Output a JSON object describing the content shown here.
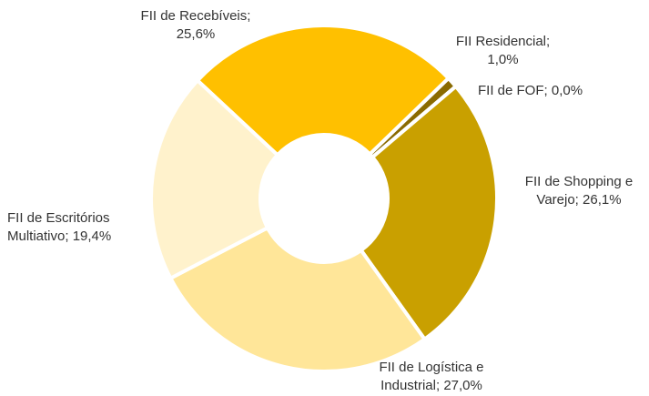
{
  "chart_data": {
    "type": "pie",
    "categories": [
      "FII de Recebíveis;",
      "FII Residencial;",
      "FII de FOF;",
      "FII de Shopping e Varejo;",
      "FII de Logística e Industrial;",
      "FII de Escritórios Multiativo;"
    ],
    "values": [
      25.6,
      1.0,
      0.0,
      26.1,
      27.0,
      19.4
    ],
    "value_labels": [
      "25,6%",
      "1,0%",
      "0,0%",
      "26,1%",
      "27,0%",
      "19,4%"
    ],
    "colors": [
      "#ffc000",
      "#8a6a00",
      "#fff7dd",
      "#c9a000",
      "#ffe699",
      "#fff2cc"
    ]
  }
}
